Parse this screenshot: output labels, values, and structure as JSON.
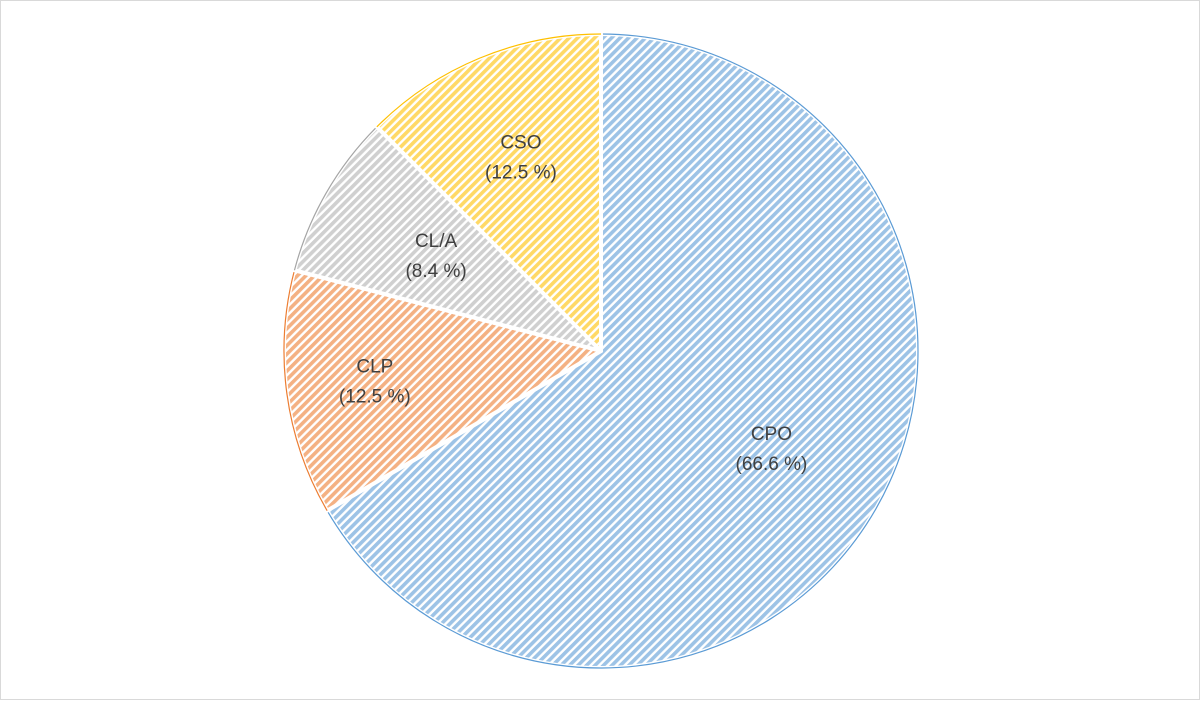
{
  "chart_data": {
    "type": "pie",
    "title": "",
    "slices": [
      {
        "label": "CPO",
        "percent_label": "(66.6 %)",
        "value": 66.6,
        "color": "#9dc3e6",
        "stroke": "#5b9bd5"
      },
      {
        "label": "CLP",
        "percent_label": "(12.5 %)",
        "value": 12.5,
        "color": "#f4b183",
        "stroke": "#ed7d31"
      },
      {
        "label": "CL/A",
        "percent_label": "(8.4 %)",
        "value": 8.4,
        "color": "#d0d0d0",
        "stroke": "#a5a5a5"
      },
      {
        "label": "CSO",
        "percent_label": "(12.5 %)",
        "value": 12.5,
        "color": "#ffd966",
        "stroke": "#ffc000"
      }
    ],
    "start_angle_deg": 0,
    "direction": "clockwise",
    "fill_style": "diagonal-hatch",
    "legend": "none"
  }
}
